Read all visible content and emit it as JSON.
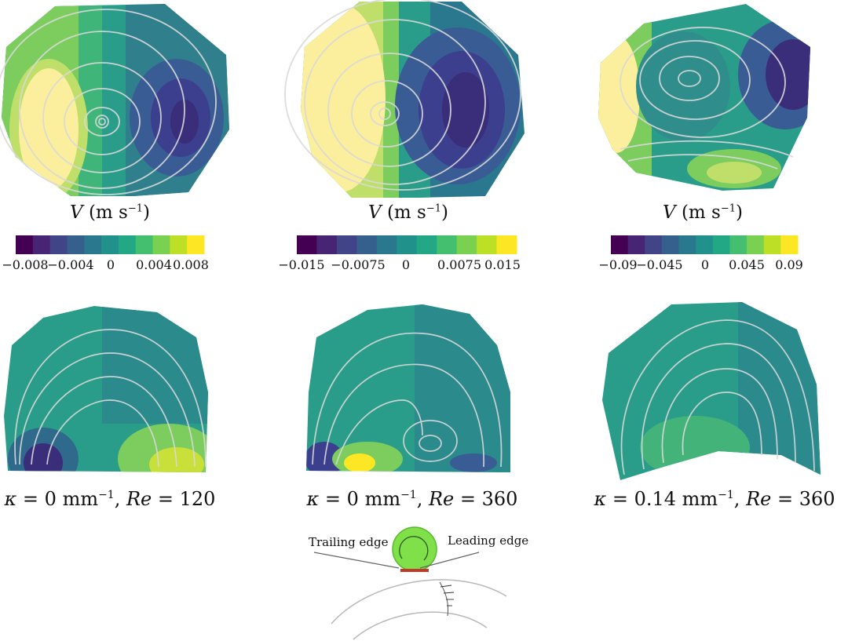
{
  "colorbar_colors": [
    "#440154",
    "#482475",
    "#414487",
    "#355f8d",
    "#2a788e",
    "#21918c",
    "#22a884",
    "#44bf70",
    "#7ad151",
    "#bddf26",
    "#fde725"
  ],
  "top_row": [
    {
      "variable": "V",
      "unit_open": "(m s",
      "unit_exp": "−1",
      "unit_close": ")",
      "ticks": [
        "−0.008",
        "−0.004",
        "0",
        "0.004",
        "0.008"
      ]
    },
    {
      "variable": "V",
      "unit_open": "(m s",
      "unit_exp": "−1",
      "unit_close": ")",
      "ticks": [
        "−0.015",
        "−0.0075",
        "0",
        "0.0075",
        "0.015"
      ]
    },
    {
      "variable": "V",
      "unit_open": "(m s",
      "unit_exp": "−1",
      "unit_close": ")",
      "ticks": [
        "−0.09",
        "−0.045",
        "0",
        "0.045",
        "0.09"
      ]
    }
  ],
  "captions": [
    {
      "kappa_sym": "κ",
      "kappa_val": " = 0 mm",
      "kappa_exp": "−1",
      "re_sym": "Re",
      "re_val": " = 120",
      "sep": ", "
    },
    {
      "kappa_sym": "κ",
      "kappa_val": " = 0 mm",
      "kappa_exp": "−1",
      "re_sym": "Re",
      "re_val": " = 360",
      "sep": ", "
    },
    {
      "kappa_sym": "κ",
      "kappa_val": " = 0.14 mm",
      "kappa_exp": "−1",
      "re_sym": "Re",
      "re_val": " = 360",
      "sep": ", "
    }
  ],
  "schematic": {
    "trailing_edge": "Trailing edge",
    "leading_edge": "Leading edge"
  }
}
